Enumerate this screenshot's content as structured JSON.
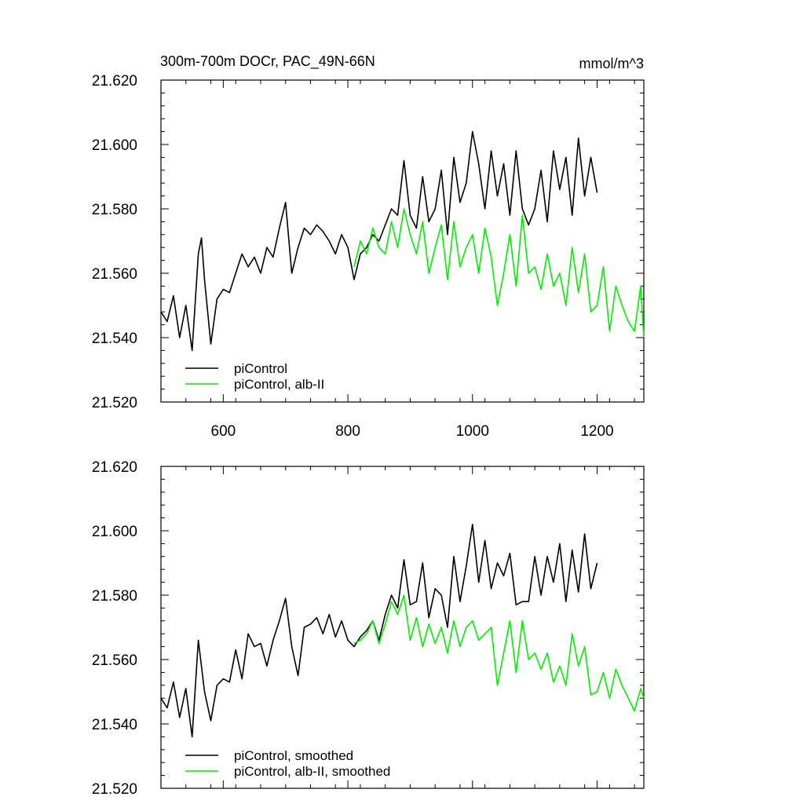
{
  "figure": {
    "title_left": "300m-700m DOCr, PAC_49N-66N",
    "title_right": "mmol/m^3"
  },
  "colors": {
    "black_series": "#000000",
    "green_series": "#00ee00"
  },
  "chart_data": [
    {
      "type": "line",
      "title": "300m-700m DOCr, PAC_49N-66N",
      "units": "mmol/m^3",
      "xlabel": "",
      "ylabel": "",
      "xlim": [
        500,
        1275
      ],
      "ylim": [
        21.52,
        21.62
      ],
      "x_ticks": [
        600,
        800,
        1000,
        1200
      ],
      "x_tick_labels": [
        "600",
        "800",
        "1000",
        "1200"
      ],
      "y_ticks": [
        21.52,
        21.54,
        21.56,
        21.58,
        21.6,
        21.62
      ],
      "y_tick_labels": [
        "21.520",
        "21.540",
        "21.560",
        "21.580",
        "21.600",
        "21.620"
      ],
      "grid": false,
      "legend_position": "bottom-left",
      "series": [
        {
          "name": "piControl",
          "color": "#000000",
          "x": [
            500,
            510,
            520,
            530,
            540,
            550,
            560,
            565,
            570,
            580,
            590,
            600,
            610,
            620,
            630,
            640,
            650,
            660,
            670,
            680,
            690,
            700,
            710,
            720,
            730,
            740,
            750,
            760,
            770,
            780,
            790,
            800,
            810,
            820,
            830,
            840,
            850,
            860,
            870,
            880,
            890,
            900,
            910,
            920,
            930,
            940,
            950,
            960,
            970,
            980,
            990,
            1000,
            1010,
            1020,
            1030,
            1040,
            1050,
            1060,
            1070,
            1080,
            1090,
            1100,
            1110,
            1120,
            1130,
            1140,
            1150,
            1160,
            1170,
            1180,
            1190,
            1200
          ],
          "y": [
            21.548,
            21.545,
            21.553,
            21.54,
            21.55,
            21.536,
            21.566,
            21.571,
            21.558,
            21.538,
            21.552,
            21.555,
            21.554,
            21.56,
            21.566,
            21.562,
            21.565,
            21.56,
            21.568,
            21.565,
            21.574,
            21.582,
            21.56,
            21.568,
            21.574,
            21.572,
            21.575,
            21.573,
            21.57,
            21.566,
            21.572,
            21.568,
            21.558,
            21.566,
            21.568,
            21.572,
            21.57,
            21.575,
            21.58,
            21.578,
            21.595,
            21.578,
            21.574,
            21.59,
            21.576,
            21.58,
            21.592,
            21.572,
            21.596,
            21.582,
            21.588,
            21.604,
            21.594,
            21.58,
            21.598,
            21.584,
            21.594,
            21.578,
            21.598,
            21.58,
            21.575,
            21.58,
            21.592,
            21.576,
            21.598,
            21.586,
            21.596,
            21.578,
            21.602,
            21.584,
            21.596,
            21.585
          ]
        },
        {
          "name": "piControl, alb-II",
          "color": "#00ee00",
          "x": [
            810,
            820,
            830,
            840,
            850,
            860,
            870,
            880,
            890,
            900,
            910,
            920,
            930,
            940,
            950,
            960,
            970,
            980,
            990,
            1000,
            1010,
            1020,
            1030,
            1040,
            1050,
            1060,
            1070,
            1080,
            1090,
            1100,
            1110,
            1120,
            1130,
            1140,
            1150,
            1160,
            1170,
            1180,
            1190,
            1200,
            1210,
            1220,
            1230,
            1240,
            1250,
            1260,
            1270,
            1275
          ],
          "y": [
            21.562,
            21.57,
            21.566,
            21.574,
            21.568,
            21.566,
            21.576,
            21.568,
            21.58,
            21.572,
            21.566,
            21.576,
            21.56,
            21.568,
            21.575,
            21.558,
            21.576,
            21.562,
            21.568,
            21.572,
            21.56,
            21.574,
            21.565,
            21.55,
            21.56,
            21.572,
            21.556,
            21.578,
            21.56,
            21.562,
            21.555,
            21.566,
            21.556,
            21.56,
            21.55,
            21.568,
            21.554,
            21.566,
            21.548,
            21.55,
            21.562,
            21.542,
            21.556,
            21.55,
            21.545,
            21.542,
            21.556,
            21.54
          ]
        }
      ]
    },
    {
      "type": "line",
      "title": "",
      "xlabel": "",
      "ylabel": "",
      "xlim": [
        500,
        1275
      ],
      "ylim": [
        21.52,
        21.62
      ],
      "x_ticks": [
        600,
        800,
        1000,
        1200
      ],
      "x_tick_labels": [],
      "y_ticks": [
        21.52,
        21.54,
        21.56,
        21.58,
        21.6,
        21.62
      ],
      "y_tick_labels": [
        "21.520",
        "21.540",
        "21.560",
        "21.580",
        "21.600",
        "21.620"
      ],
      "grid": false,
      "legend_position": "bottom-left",
      "series": [
        {
          "name": "piControl, smoothed",
          "color": "#000000",
          "x": [
            500,
            510,
            520,
            530,
            540,
            550,
            560,
            570,
            580,
            590,
            600,
            610,
            620,
            630,
            640,
            650,
            660,
            670,
            680,
            690,
            700,
            710,
            720,
            730,
            740,
            750,
            760,
            770,
            780,
            790,
            800,
            810,
            820,
            830,
            840,
            850,
            860,
            870,
            880,
            890,
            900,
            910,
            920,
            930,
            940,
            950,
            960,
            970,
            980,
            990,
            1000,
            1010,
            1020,
            1030,
            1040,
            1050,
            1060,
            1070,
            1080,
            1090,
            1100,
            1110,
            1120,
            1130,
            1140,
            1150,
            1160,
            1170,
            1180,
            1190,
            1200
          ],
          "y": [
            21.548,
            21.545,
            21.553,
            21.542,
            21.551,
            21.536,
            21.566,
            21.55,
            21.541,
            21.552,
            21.554,
            21.553,
            21.563,
            21.554,
            21.568,
            21.564,
            21.565,
            21.558,
            21.566,
            21.572,
            21.579,
            21.564,
            21.555,
            21.57,
            21.571,
            21.573,
            21.568,
            21.574,
            21.567,
            21.572,
            21.566,
            21.564,
            21.567,
            21.569,
            21.572,
            21.566,
            21.574,
            21.58,
            21.576,
            21.591,
            21.577,
            21.578,
            21.59,
            21.573,
            21.582,
            21.58,
            21.57,
            21.592,
            21.578,
            21.589,
            21.602,
            21.584,
            21.597,
            21.582,
            21.59,
            21.586,
            21.593,
            21.577,
            21.578,
            21.578,
            21.592,
            21.58,
            21.592,
            21.584,
            21.596,
            21.578,
            21.594,
            21.581,
            21.599,
            21.582,
            21.59
          ]
        },
        {
          "name": "piControl, alb-II, smoothed",
          "color": "#00ee00",
          "x": [
            810,
            820,
            830,
            840,
            850,
            860,
            870,
            880,
            890,
            900,
            910,
            920,
            930,
            940,
            950,
            960,
            970,
            980,
            990,
            1000,
            1010,
            1020,
            1030,
            1040,
            1050,
            1060,
            1070,
            1080,
            1090,
            1100,
            1110,
            1120,
            1130,
            1140,
            1150,
            1160,
            1170,
            1180,
            1190,
            1200,
            1210,
            1220,
            1230,
            1240,
            1250,
            1260,
            1270,
            1275
          ],
          "y": [
            21.565,
            21.566,
            21.568,
            21.572,
            21.565,
            21.571,
            21.578,
            21.574,
            21.58,
            21.566,
            21.573,
            21.564,
            21.571,
            21.565,
            21.57,
            21.562,
            21.572,
            21.564,
            21.57,
            21.572,
            21.566,
            21.568,
            21.57,
            21.552,
            21.562,
            21.572,
            21.556,
            21.572,
            21.56,
            21.562,
            21.557,
            21.562,
            21.553,
            21.558,
            21.552,
            21.568,
            21.558,
            21.564,
            21.549,
            21.55,
            21.556,
            21.548,
            21.557,
            21.552,
            21.548,
            21.544,
            21.551,
            21.548
          ]
        }
      ]
    }
  ]
}
